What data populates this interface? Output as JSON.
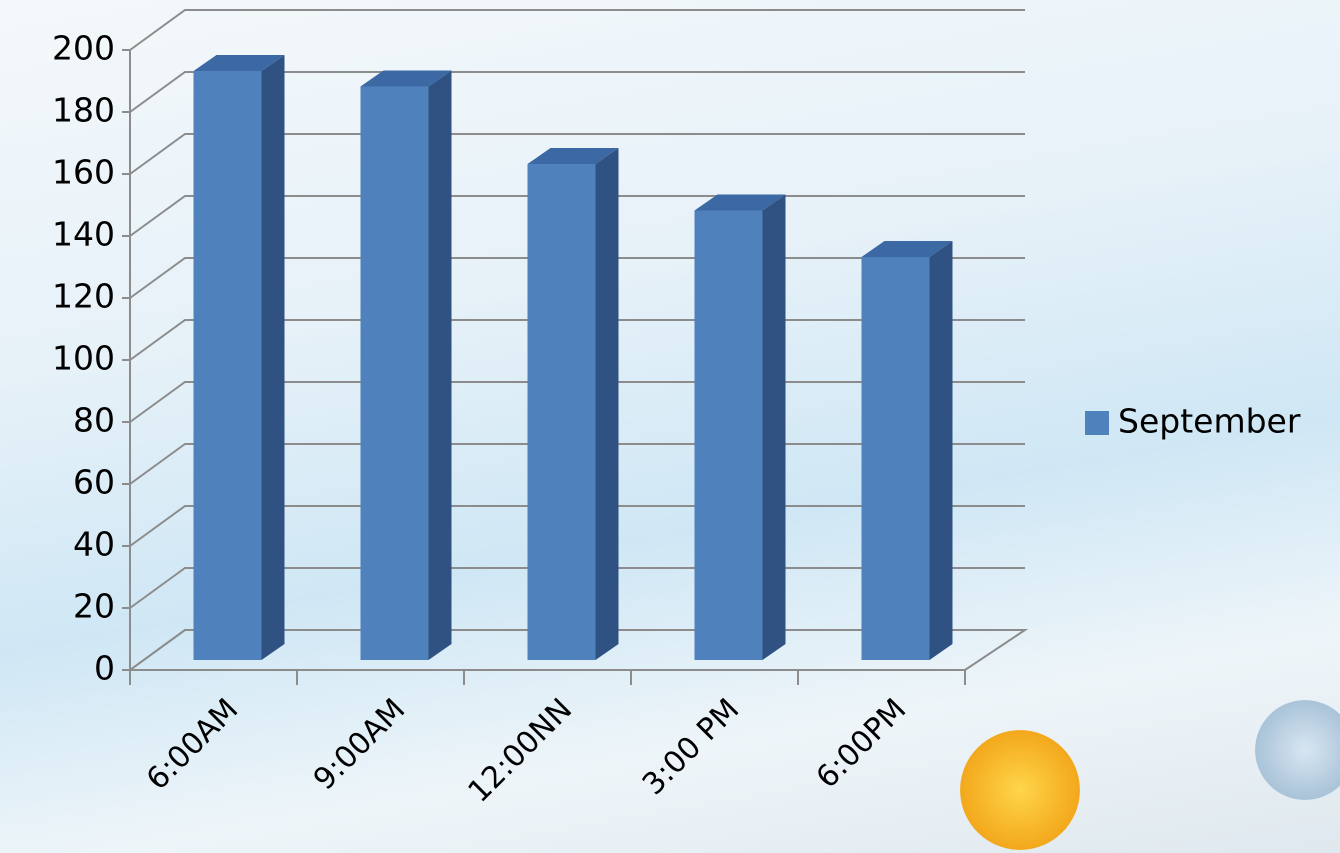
{
  "chart_data": {
    "type": "bar",
    "categories": [
      "6:00AM",
      "9:00AM",
      "12:00NN",
      "3:00 PM",
      "6:00PM"
    ],
    "series": [
      {
        "name": "September",
        "color": "#4f81bd",
        "values": [
          190,
          185,
          160,
          145,
          130
        ]
      }
    ],
    "ylim": [
      0,
      200
    ],
    "yticks": [
      0,
      20,
      40,
      60,
      80,
      100,
      120,
      140,
      160,
      180,
      200
    ],
    "grid": true,
    "legend": "right"
  }
}
